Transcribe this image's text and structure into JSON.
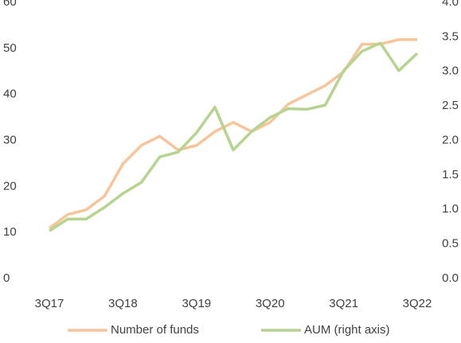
{
  "chart_data": {
    "type": "line",
    "categories": [
      "3Q17",
      null,
      null,
      null,
      "3Q18",
      null,
      null,
      null,
      "3Q19",
      null,
      null,
      null,
      "3Q20",
      null,
      null,
      null,
      "3Q21",
      null,
      null,
      null,
      "3Q22"
    ],
    "series": [
      {
        "name": "Number of funds",
        "color": "#f8c49a",
        "values": [
          13,
          16,
          17,
          20,
          27,
          31,
          33,
          30,
          31,
          34,
          36,
          34,
          36,
          40,
          42,
          44,
          47,
          53,
          53,
          54,
          54
        ]
      },
      {
        "name": "AUM (right axis)",
        "color": "#b5d48f",
        "axis": "y2",
        "values": [
          0.83,
          1.0,
          1.0,
          1.17,
          1.37,
          1.53,
          1.9,
          1.97,
          2.25,
          2.62,
          2.0,
          2.27,
          2.47,
          2.6,
          2.59,
          2.65,
          3.15,
          3.43,
          3.55,
          3.15,
          3.4
        ]
      }
    ],
    "ylim": [
      0,
      60
    ],
    "yticks": [
      0,
      10,
      20,
      30,
      40,
      50,
      60
    ],
    "y2lim": [
      0,
      4
    ],
    "y2ticks": [
      {
        "value": 0,
        "label": "0.0"
      },
      0.5,
      {
        "value": 1,
        "label": "1.0"
      },
      1.5,
      {
        "value": 2,
        "label": "2.0"
      },
      2.5,
      {
        "value": 3,
        "label": "3.0"
      },
      3.5,
      {
        "value": 4,
        "label": "4.0"
      }
    ],
    "legend": "bottom"
  }
}
